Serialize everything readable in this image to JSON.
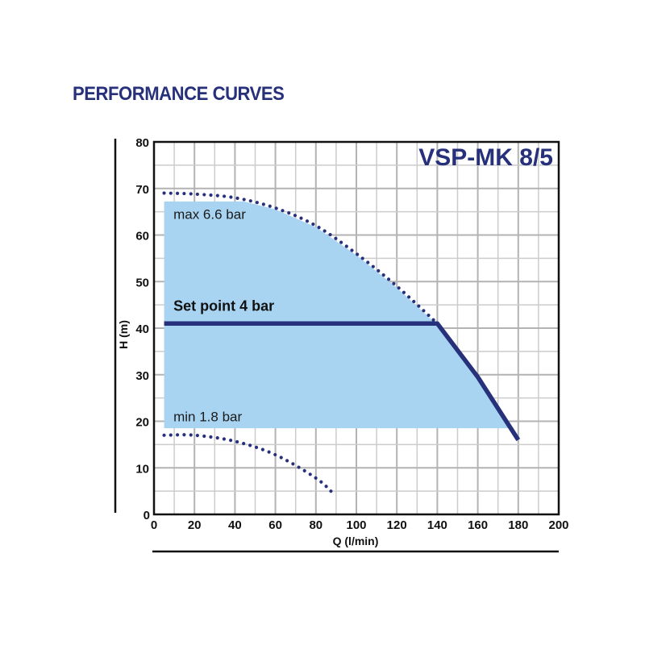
{
  "page": {
    "title": "PERFORMANCE CURVES"
  },
  "chart_data": {
    "type": "line",
    "title": "VSP-MK 8/5",
    "xlabel": "Q (l/min)",
    "ylabel": "H (m)",
    "xlim": [
      0,
      200
    ],
    "ylim": [
      0,
      80
    ],
    "xticks": [
      0,
      20,
      40,
      60,
      80,
      100,
      120,
      140,
      160,
      180,
      200
    ],
    "yticks": [
      0,
      10,
      20,
      30,
      40,
      50,
      60,
      70,
      80
    ],
    "x_minor_step": 10,
    "y_minor_step": 5,
    "grid": true,
    "colors": {
      "title": "#27307a",
      "series": "#27307a",
      "fill": "#a8d4f2",
      "grid": "#cccccc",
      "grid_major": "#b3b3b3"
    },
    "region": {
      "name": "operating range",
      "x_start": 5,
      "y_min": 18.5,
      "y_top_flat": 67.2,
      "upper_boundary": "max curve",
      "right_boundary": "set point descent line"
    },
    "series": [
      {
        "name": "max 6.6 bar",
        "style": "dotted",
        "x": [
          5,
          20,
          40,
          60,
          80,
          100,
          120,
          140
        ],
        "y": [
          69,
          68.8,
          68,
          65.8,
          62,
          56,
          49,
          41
        ]
      },
      {
        "name": "Set point 4 bar",
        "style": "solid",
        "x": [
          5,
          140,
          160,
          180
        ],
        "y": [
          41,
          41,
          29.5,
          16
        ]
      },
      {
        "name": "min 1.8 bar",
        "style": "dotted",
        "x": [
          5,
          20,
          40,
          60,
          80,
          89
        ],
        "y": [
          17,
          17,
          15.7,
          12.8,
          7.8,
          4.3
        ]
      }
    ],
    "annotations": [
      {
        "text": "max 6.6 bar",
        "x": 10,
        "y": 63.5,
        "weight": "normal"
      },
      {
        "text": "Set point 4 bar",
        "x": 10,
        "y": 43.7,
        "weight": "bold"
      },
      {
        "text": "min 1.8 bar",
        "x": 10,
        "y": 20,
        "weight": "normal"
      }
    ]
  }
}
